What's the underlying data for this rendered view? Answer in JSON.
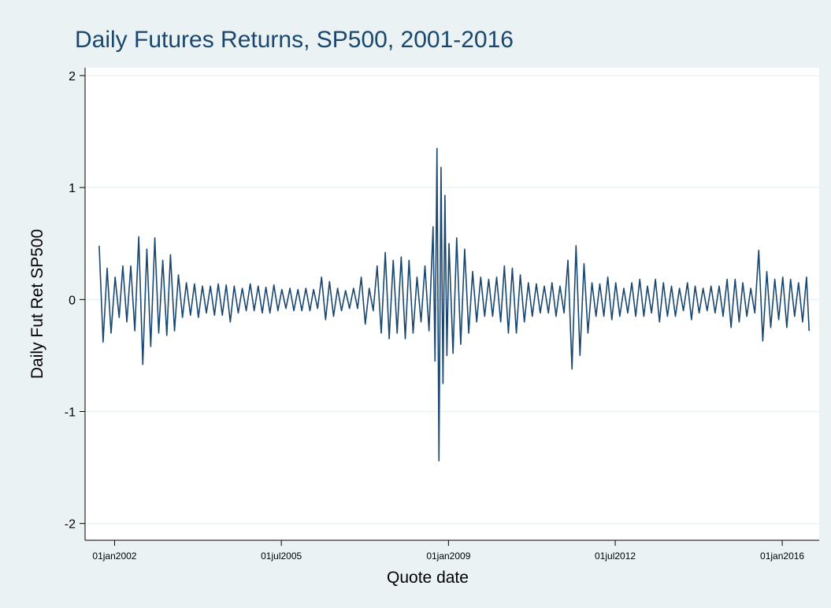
{
  "chart_data": {
    "type": "line",
    "title": "Daily Futures Returns, SP500, 2001-2016",
    "xlabel": "Quote date",
    "ylabel": "Daily Fut Ret SP500",
    "xlim": [
      "2001-05-20",
      "2016-10-10"
    ],
    "ylim": [
      -2.15,
      2.07
    ],
    "xticks": [
      {
        "value": "2002-01-01",
        "label": "01jan2002"
      },
      {
        "value": "2005-07-01",
        "label": "01jul2005"
      },
      {
        "value": "2009-01-01",
        "label": "01jan2009"
      },
      {
        "value": "2012-07-01",
        "label": "01jul2012"
      },
      {
        "value": "2016-01-01",
        "label": "01jan2016"
      }
    ],
    "yticks": [
      -2,
      -1,
      0,
      1,
      2
    ],
    "grid": true,
    "series": [
      {
        "name": "Daily Fut Ret SP500",
        "color": "#1a476f",
        "x": [
          "2001-09-05",
          "2001-10-05",
          "2001-11-05",
          "2001-12-05",
          "2002-01-05",
          "2002-02-05",
          "2002-03-05",
          "2002-04-05",
          "2002-05-05",
          "2002-06-05",
          "2002-07-05",
          "2002-08-05",
          "2002-09-05",
          "2002-10-05",
          "2002-11-05",
          "2002-12-05",
          "2003-01-05",
          "2003-02-05",
          "2003-03-05",
          "2003-04-05",
          "2003-05-05",
          "2003-06-05",
          "2003-07-05",
          "2003-08-05",
          "2003-09-05",
          "2003-10-05",
          "2003-11-05",
          "2003-12-05",
          "2004-01-05",
          "2004-02-05",
          "2004-03-05",
          "2004-04-05",
          "2004-05-05",
          "2004-06-05",
          "2004-07-05",
          "2004-08-05",
          "2004-09-05",
          "2004-10-05",
          "2004-11-05",
          "2004-12-05",
          "2005-01-05",
          "2005-02-05",
          "2005-03-05",
          "2005-04-05",
          "2005-05-05",
          "2005-06-05",
          "2005-07-05",
          "2005-08-05",
          "2005-09-05",
          "2005-10-05",
          "2005-11-05",
          "2005-12-05",
          "2006-01-05",
          "2006-02-05",
          "2006-03-05",
          "2006-04-05",
          "2006-05-05",
          "2006-06-05",
          "2006-07-05",
          "2006-08-05",
          "2006-09-05",
          "2006-10-05",
          "2006-11-05",
          "2006-12-05",
          "2007-01-05",
          "2007-02-05",
          "2007-03-05",
          "2007-04-05",
          "2007-05-05",
          "2007-06-05",
          "2007-07-05",
          "2007-08-05",
          "2007-09-05",
          "2007-10-05",
          "2007-11-05",
          "2007-12-05",
          "2008-01-05",
          "2008-02-05",
          "2008-03-05",
          "2008-04-05",
          "2008-05-05",
          "2008-06-05",
          "2008-07-05",
          "2008-08-05",
          "2008-09-05",
          "2008-09-20",
          "2008-10-05",
          "2008-10-20",
          "2008-11-05",
          "2008-11-20",
          "2008-12-05",
          "2008-12-20",
          "2009-01-05",
          "2009-02-05",
          "2009-03-05",
          "2009-04-05",
          "2009-05-05",
          "2009-06-05",
          "2009-07-05",
          "2009-08-05",
          "2009-09-05",
          "2009-10-05",
          "2009-11-05",
          "2009-12-05",
          "2010-01-05",
          "2010-02-05",
          "2010-03-05",
          "2010-04-05",
          "2010-05-05",
          "2010-06-05",
          "2010-07-05",
          "2010-08-05",
          "2010-09-05",
          "2010-10-05",
          "2010-11-05",
          "2010-12-05",
          "2011-01-05",
          "2011-02-05",
          "2011-03-05",
          "2011-04-05",
          "2011-05-05",
          "2011-06-05",
          "2011-07-05",
          "2011-08-05",
          "2011-09-05",
          "2011-10-05",
          "2011-11-05",
          "2011-12-05",
          "2012-01-05",
          "2012-02-05",
          "2012-03-05",
          "2012-04-05",
          "2012-05-05",
          "2012-06-05",
          "2012-07-05",
          "2012-08-05",
          "2012-09-05",
          "2012-10-05",
          "2012-11-05",
          "2012-12-05",
          "2013-01-05",
          "2013-02-05",
          "2013-03-05",
          "2013-04-05",
          "2013-05-05",
          "2013-06-05",
          "2013-07-05",
          "2013-08-05",
          "2013-09-05",
          "2013-10-05",
          "2013-11-05",
          "2013-12-05",
          "2014-01-05",
          "2014-02-05",
          "2014-03-05",
          "2014-04-05",
          "2014-05-05",
          "2014-06-05",
          "2014-07-05",
          "2014-08-05",
          "2014-09-05",
          "2014-10-05",
          "2014-11-05",
          "2014-12-05",
          "2015-01-05",
          "2015-02-05",
          "2015-03-05",
          "2015-04-05",
          "2015-05-05",
          "2015-06-05",
          "2015-07-05",
          "2015-08-05",
          "2015-09-05",
          "2015-10-05",
          "2015-11-05",
          "2015-12-05",
          "2016-01-05",
          "2016-02-05",
          "2016-03-05",
          "2016-04-05",
          "2016-05-05",
          "2016-06-05",
          "2016-07-05",
          "2016-07-25"
        ],
        "values": [
          0.48,
          -0.38,
          0.28,
          -0.3,
          0.2,
          -0.16,
          0.3,
          -0.2,
          0.3,
          -0.28,
          0.56,
          -0.58,
          0.45,
          -0.42,
          0.55,
          -0.3,
          0.35,
          -0.32,
          0.4,
          -0.28,
          0.22,
          -0.16,
          0.15,
          -0.14,
          0.14,
          -0.16,
          0.12,
          -0.12,
          0.12,
          -0.14,
          0.14,
          -0.14,
          0.13,
          -0.2,
          0.12,
          -0.12,
          0.1,
          -0.1,
          0.14,
          -0.1,
          0.12,
          -0.12,
          0.11,
          -0.12,
          0.13,
          -0.1,
          0.09,
          -0.08,
          0.1,
          -0.1,
          0.09,
          -0.1,
          0.1,
          -0.1,
          0.09,
          -0.08,
          0.2,
          -0.18,
          0.16,
          -0.15,
          0.1,
          -0.1,
          0.08,
          -0.08,
          0.1,
          -0.08,
          0.2,
          -0.22,
          0.1,
          -0.1,
          0.3,
          -0.3,
          0.42,
          -0.35,
          0.35,
          -0.3,
          0.38,
          -0.35,
          0.35,
          -0.3,
          0.2,
          -0.2,
          0.3,
          -0.28,
          0.65,
          -0.55,
          1.35,
          -1.44,
          1.18,
          -0.75,
          0.93,
          -0.5,
          0.5,
          -0.48,
          0.55,
          -0.4,
          0.45,
          -0.3,
          0.25,
          -0.2,
          0.2,
          -0.15,
          0.18,
          -0.15,
          0.2,
          -0.2,
          0.3,
          -0.3,
          0.28,
          -0.3,
          0.22,
          -0.2,
          0.15,
          -0.15,
          0.14,
          -0.12,
          0.12,
          -0.12,
          0.15,
          -0.15,
          0.12,
          -0.12,
          0.35,
          -0.62,
          0.48,
          -0.5,
          0.32,
          -0.3,
          0.15,
          -0.15,
          0.14,
          -0.15,
          0.2,
          -0.18,
          0.15,
          -0.15,
          0.1,
          -0.12,
          0.15,
          -0.15,
          0.18,
          -0.15,
          0.12,
          -0.12,
          0.18,
          -0.2,
          0.15,
          -0.15,
          0.12,
          -0.15,
          0.1,
          -0.1,
          0.15,
          -0.18,
          0.12,
          -0.12,
          0.1,
          -0.1,
          0.12,
          -0.12,
          0.12,
          -0.15,
          0.18,
          -0.25,
          0.18,
          -0.2,
          0.15,
          -0.15,
          0.1,
          -0.12,
          0.44,
          -0.37,
          0.25,
          -0.25,
          0.18,
          -0.18,
          0.2,
          -0.25,
          0.18,
          -0.15,
          0.15,
          -0.2,
          0.2,
          -0.28
        ]
      }
    ]
  }
}
